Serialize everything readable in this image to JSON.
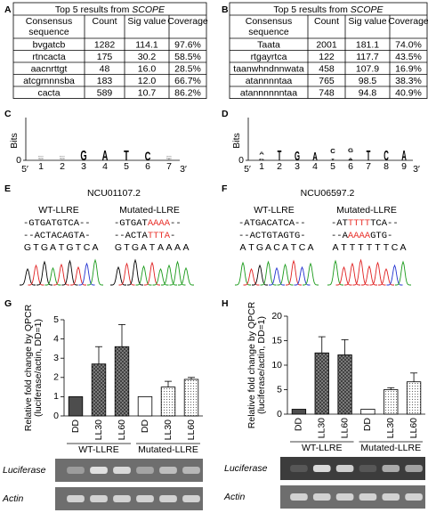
{
  "panel_labels": [
    "A",
    "B",
    "C",
    "D",
    "E",
    "F",
    "G",
    "H"
  ],
  "tables": [
    {
      "title": "Top 5 results from ",
      "title_italic": "SCOPE",
      "header": [
        [
          "Consensus",
          "sequence"
        ],
        "Count",
        "Sig value",
        "Coverage"
      ],
      "rows": [
        [
          "bvgatcb",
          "1282",
          "114.1",
          "97.6%"
        ],
        [
          "rtncacta",
          "175",
          "30.2",
          "58.5%"
        ],
        [
          "aacnrttgt",
          "48",
          "16.0",
          "28.5%"
        ],
        [
          "atcgrnnnsba",
          "183",
          "12.0",
          "66.7%"
        ],
        [
          "cacta",
          "589",
          "10.7",
          "86.2%"
        ]
      ],
      "highlight_row": 0,
      "highlight_color": "#e8302a"
    },
    {
      "title": "Top 5 results from ",
      "title_italic": "SCOPE",
      "header": [
        [
          "Consensus",
          "sequence"
        ],
        "Count",
        "Sig value",
        "Coverage"
      ],
      "rows": [
        [
          "Taata",
          "2001",
          "181.1",
          "74.0%"
        ],
        [
          "rtgayrtca",
          "122",
          "117.7",
          "43.5%"
        ],
        [
          "taanwhndnnwata",
          "458",
          "107.9",
          "16.9%"
        ],
        [
          "atannnntaa",
          "765",
          "98.5",
          "38.3%"
        ],
        [
          "atannnnnntaa",
          "748",
          "94.8",
          "40.9%"
        ]
      ],
      "highlight_row": 1,
      "highlight_color": "#e8302a"
    }
  ],
  "logo_colors": {
    "A": "#1e9e1e",
    "C": "#2038d0",
    "G": "#f5a300",
    "T": "#e8302a"
  },
  "logos": [
    {
      "ylabel": "Bits",
      "yticks": [
        0
      ],
      "ends": [
        "5′",
        "3′"
      ],
      "position_labels": [
        1,
        2,
        3,
        4,
        5,
        6,
        7
      ],
      "positions": [
        [
          [
            "T",
            0.05
          ],
          [
            "A",
            0.06
          ],
          [
            "C",
            0.1
          ],
          [
            "G",
            0.12
          ]
        ],
        [
          [
            "T",
            0.05
          ],
          [
            "A",
            0.06
          ],
          [
            "C",
            0.08
          ],
          [
            "G",
            0.12
          ]
        ],
        [
          [
            "G",
            1.9
          ]
        ],
        [
          [
            "A",
            1.9
          ]
        ],
        [
          [
            "T",
            1.9
          ]
        ],
        [
          [
            "C",
            1.75
          ]
        ],
        [
          [
            "A",
            0.05
          ],
          [
            "T",
            0.06
          ],
          [
            "G",
            0.08
          ],
          [
            "C",
            0.1
          ]
        ]
      ]
    },
    {
      "ylabel": "Bits",
      "yticks": [
        0
      ],
      "ends": [
        "5′",
        "3′"
      ],
      "position_labels": [
        1,
        2,
        3,
        4,
        5,
        6,
        7,
        8,
        9
      ],
      "positions": [
        [
          [
            "G",
            0.3
          ],
          [
            "A",
            0.6
          ]
        ],
        [
          [
            "T",
            1.9
          ]
        ],
        [
          [
            "G",
            1.8
          ]
        ],
        [
          [
            "A",
            1.6
          ]
        ],
        [
          [
            "T",
            0.35
          ],
          [
            "C",
            0.9
          ]
        ],
        [
          [
            "A",
            0.4
          ],
          [
            "G",
            0.8
          ]
        ],
        [
          [
            "T",
            1.9
          ]
        ],
        [
          [
            "C",
            1.9
          ]
        ],
        [
          [
            "A",
            1.9
          ]
        ]
      ]
    }
  ],
  "base_colors": {
    "A": "#1a9a1a",
    "C": "#2030d0",
    "G": "#000000",
    "T": "#e02020"
  },
  "traces": [
    {
      "title": "NCU01107.2",
      "columns": [
        {
          "label": "WT-LLRE",
          "lines": [
            [
              {
                "text": "-GTGATGTCA--"
              }
            ],
            [
              {
                "text": "--ACTACAGTA-"
              }
            ]
          ],
          "bases": [
            "G",
            "T",
            "G",
            "A",
            "T",
            "G",
            "T",
            "C",
            "A"
          ]
        },
        {
          "label": "Mutated-LLRE",
          "lines": [
            [
              {
                "text": "-GTGAT"
              },
              {
                "text": "AAAA",
                "color": "#e8302a"
              },
              {
                "text": "--"
              }
            ],
            [
              {
                "text": "--ACTA"
              },
              {
                "text": "TTTA",
                "color": "#e8302a"
              },
              {
                "text": "-"
              }
            ]
          ],
          "bases": [
            "G",
            "T",
            "G",
            "A",
            "T",
            "A",
            "A",
            "A",
            "A"
          ]
        }
      ]
    },
    {
      "title": "NCU06597.2",
      "columns": [
        {
          "label": "WT-LLRE",
          "lines": [
            [
              {
                "text": "-ATGACATCA--"
              }
            ],
            [
              {
                "text": "--ACTGTAGTG-"
              }
            ]
          ],
          "bases": [
            "A",
            "T",
            "G",
            "A",
            "C",
            "A",
            "T",
            "C",
            "A"
          ]
        },
        {
          "label": "Mutated-LLRE",
          "lines": [
            [
              {
                "text": "-AT"
              },
              {
                "text": "TTTT",
                "color": "#e8302a"
              },
              {
                "text": "TCA--"
              }
            ],
            [
              {
                "text": "--A"
              },
              {
                "text": "AAAA",
                "color": "#e8302a"
              },
              {
                "text": "GTG-"
              }
            ]
          ],
          "bases": [
            "A",
            "T",
            "T",
            "T",
            "T",
            "T",
            "T",
            "C",
            "A"
          ]
        }
      ]
    }
  ],
  "gels": [
    {
      "rows": [
        "Luciferase",
        "Actin"
      ]
    },
    {
      "rows": [
        "Luciferase",
        "Actin"
      ]
    }
  ],
  "chart_data": [
    {
      "type": "bar",
      "ylabel": [
        "Relative fold change by QPCR",
        "(luciferase/actin, DD=1)"
      ],
      "categories": [
        "DD",
        "LL30",
        "LL60",
        "DD",
        "LL30",
        "LL60"
      ],
      "groups": [
        "WT-LLRE",
        "Mutated-LLRE"
      ],
      "values": [
        1,
        2.7,
        3.6,
        1,
        1.5,
        1.9
      ],
      "errors": [
        null,
        0.9,
        1.15,
        null,
        0.3,
        0.1
      ],
      "fills": [
        "#4d4d4d",
        "cross",
        "cross",
        "#ffffff",
        "dots",
        "dots"
      ],
      "ylim": [
        0,
        5
      ],
      "yticks": [
        0,
        1,
        2,
        3,
        4,
        5
      ]
    },
    {
      "type": "bar",
      "ylabel": [
        "Relative fold change by QPCR",
        "(luciferase/actin, DD=1)"
      ],
      "categories": [
        "DD",
        "LL30",
        "LL60",
        "DD",
        "LL30",
        "LL60"
      ],
      "groups": [
        "WT-LLRE",
        "Mutated-LLRE"
      ],
      "values": [
        1,
        12.5,
        12.1,
        1,
        5,
        6.6
      ],
      "errors": [
        null,
        3.3,
        3.1,
        null,
        0.4,
        1.8
      ],
      "fills": [
        "#4d4d4d",
        "cross",
        "cross",
        "#ffffff",
        "dots",
        "dots"
      ],
      "ylim": [
        0,
        20
      ],
      "yticks": [
        0,
        5,
        10,
        15,
        20
      ]
    }
  ]
}
